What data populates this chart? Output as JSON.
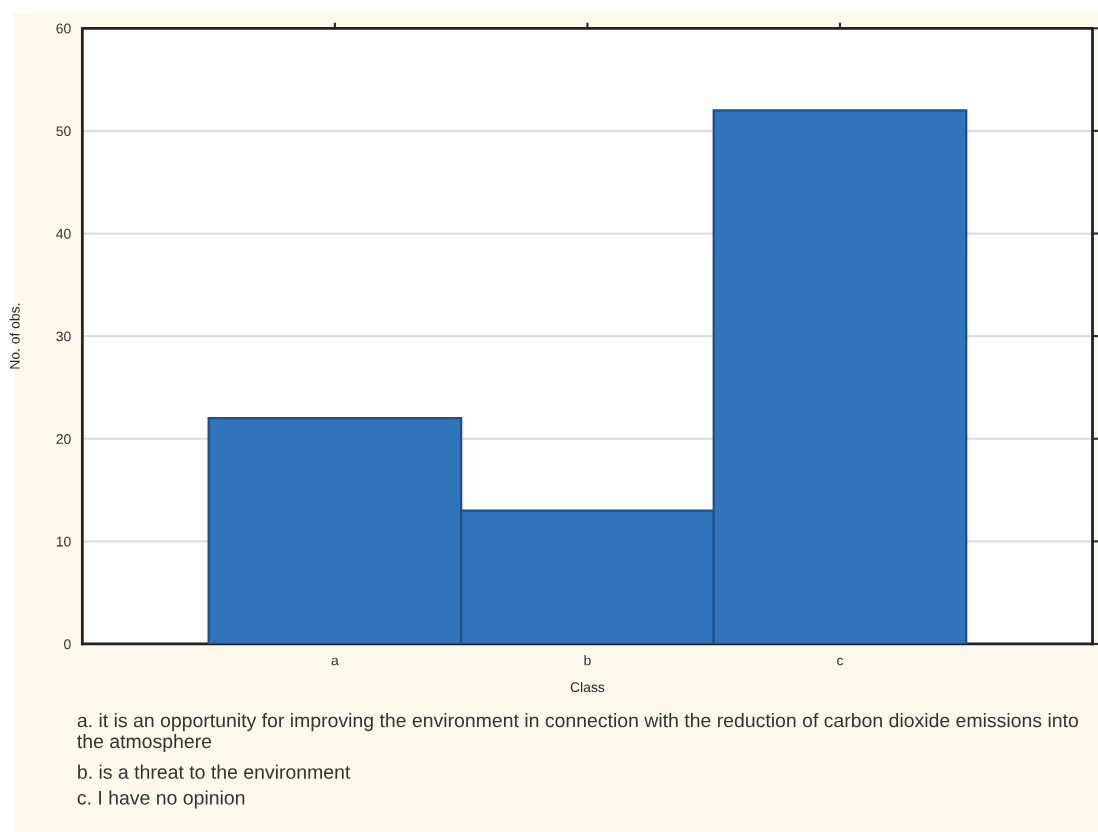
{
  "chart_data": {
    "type": "bar",
    "xlabel": "Class",
    "ylabel": "No. of obs.",
    "categories": [
      "a",
      "b",
      "c"
    ],
    "values": [
      22,
      13,
      52
    ],
    "color": "#3074bc",
    "ylim": [
      0,
      60
    ],
    "yticks": [
      0,
      10,
      20,
      30,
      40,
      50,
      60
    ],
    "grid": "y",
    "annotations": [
      "a. it is an opportunity for improving the environment in connection with the reduction of carbon dioxide emissions into the atmosphere",
      "b. is a threat to the environment",
      "c. I have no opinion"
    ]
  }
}
